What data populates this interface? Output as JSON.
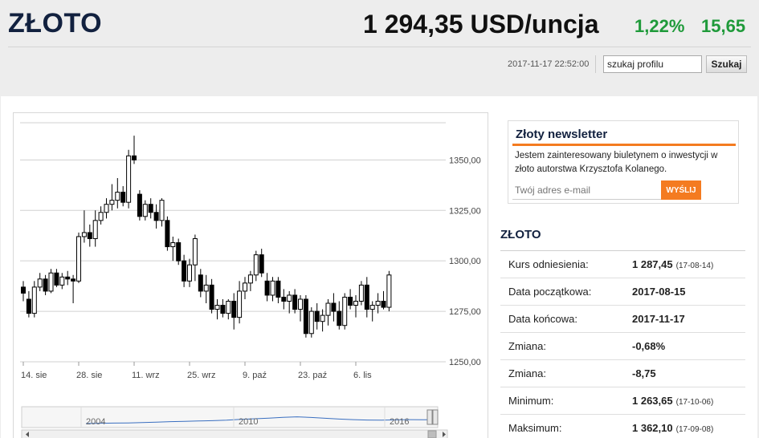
{
  "header": {
    "title": "ZŁOTO",
    "price": "1 294,35 USD/uncja",
    "change_pct": "1,22%",
    "change_abs": "15,65",
    "timestamp": "2017-11-17 22:52:00",
    "search_value": "szukaj profilu",
    "search_button": "Szukaj"
  },
  "newsletter": {
    "title": "Złoty newsletter",
    "text": "Jestem zainteresowany biuletynem o inwestycji w złoto autorstwa Krzysztofa Kolanego.",
    "placeholder": "Twój adres e-mail",
    "button": "WYŚLIJ",
    "accent": "#f47b20"
  },
  "stats": {
    "title": "ZŁOTO",
    "rows": [
      {
        "label": "Kurs odniesienia:",
        "value": "1 287,45",
        "date": "(17-08-14)"
      },
      {
        "label": "Data początkowa:",
        "value": "2017-08-15",
        "date": ""
      },
      {
        "label": "Data końcowa:",
        "value": "2017-11-17",
        "date": ""
      },
      {
        "label": "Zmiana:",
        "value": "-0,68%",
        "date": ""
      },
      {
        "label": "Zmiana:",
        "value": "-8,75",
        "date": ""
      },
      {
        "label": "Minimum:",
        "value": "1 263,65",
        "date": "(17-10-06)"
      },
      {
        "label": "Maksimum:",
        "value": "1 362,10",
        "date": "(17-09-08)"
      }
    ]
  },
  "chart_data": {
    "type": "candlestick",
    "ylim": [
      1250,
      1370
    ],
    "y_ticks": [
      1350,
      1325,
      1300,
      1275,
      1250
    ],
    "y_tick_labels": [
      "1350,00",
      "1325,00",
      "1300,00",
      "1275,00",
      "1250,00"
    ],
    "x_tick_labels": [
      "14. sie",
      "28. sie",
      "11. wrz",
      "25. wrz",
      "9. paź",
      "23. paź",
      "6. lis"
    ],
    "x_tick_index": [
      0,
      10,
      20,
      30,
      40,
      50,
      60
    ],
    "grid": true,
    "colors": {
      "up": "#ffffff",
      "down": "#000000",
      "grid": "#d0d0d0",
      "navigator": "#3a6fc0"
    },
    "candles": [
      [
        1287,
        1290,
        1280,
        1284
      ],
      [
        1281,
        1285,
        1272,
        1274
      ],
      [
        1274,
        1290,
        1272,
        1287
      ],
      [
        1287,
        1294,
        1285,
        1291
      ],
      [
        1291,
        1293,
        1283,
        1285
      ],
      [
        1285,
        1296,
        1284,
        1294
      ],
      [
        1294,
        1296,
        1287,
        1288
      ],
      [
        1288,
        1294,
        1286,
        1292
      ],
      [
        1292,
        1295,
        1288,
        1291
      ],
      [
        1291,
        1293,
        1279,
        1290
      ],
      [
        1290,
        1314,
        1289,
        1312
      ],
      [
        1312,
        1325,
        1309,
        1314
      ],
      [
        1314,
        1318,
        1307,
        1311
      ],
      [
        1311,
        1325,
        1307,
        1320
      ],
      [
        1320,
        1327,
        1318,
        1324
      ],
      [
        1324,
        1331,
        1321,
        1328
      ],
      [
        1328,
        1338,
        1325,
        1330
      ],
      [
        1330,
        1341,
        1326,
        1334
      ],
      [
        1334,
        1337,
        1327,
        1329
      ],
      [
        1329,
        1355,
        1326,
        1352
      ],
      [
        1352,
        1362,
        1348,
        1350
      ],
      [
        1333,
        1335,
        1320,
        1322
      ],
      [
        1322,
        1330,
        1320,
        1328
      ],
      [
        1328,
        1331,
        1321,
        1324
      ],
      [
        1324,
        1328,
        1316,
        1320
      ],
      [
        1320,
        1331,
        1317,
        1330
      ],
      [
        1320,
        1322,
        1305,
        1307
      ],
      [
        1307,
        1312,
        1300,
        1309
      ],
      [
        1309,
        1311,
        1298,
        1300
      ],
      [
        1300,
        1303,
        1287,
        1290
      ],
      [
        1290,
        1301,
        1287,
        1298
      ],
      [
        1298,
        1313,
        1290,
        1311
      ],
      [
        1293,
        1296,
        1282,
        1285
      ],
      [
        1285,
        1293,
        1279,
        1288
      ],
      [
        1288,
        1291,
        1274,
        1276
      ],
      [
        1276,
        1281,
        1271,
        1278
      ],
      [
        1278,
        1281,
        1272,
        1274
      ],
      [
        1274,
        1281,
        1271,
        1280
      ],
      [
        1280,
        1284,
        1266,
        1272
      ],
      [
        1272,
        1290,
        1269,
        1285
      ],
      [
        1285,
        1292,
        1281,
        1289
      ],
      [
        1289,
        1295,
        1285,
        1293
      ],
      [
        1293,
        1305,
        1290,
        1303
      ],
      [
        1303,
        1306,
        1292,
        1294
      ],
      [
        1290,
        1294,
        1280,
        1283
      ],
      [
        1283,
        1292,
        1280,
        1290
      ],
      [
        1290,
        1292,
        1279,
        1282
      ],
      [
        1282,
        1286,
        1276,
        1280
      ],
      [
        1280,
        1285,
        1274,
        1283
      ],
      [
        1283,
        1286,
        1274,
        1276
      ],
      [
        1276,
        1283,
        1270,
        1281
      ],
      [
        1281,
        1283,
        1262,
        1264
      ],
      [
        1264,
        1277,
        1262,
        1275
      ],
      [
        1275,
        1279,
        1266,
        1270
      ],
      [
        1270,
        1276,
        1265,
        1273
      ],
      [
        1273,
        1281,
        1268,
        1279
      ],
      [
        1279,
        1284,
        1270,
        1275
      ],
      [
        1275,
        1280,
        1266,
        1268
      ],
      [
        1268,
        1284,
        1266,
        1282
      ],
      [
        1282,
        1286,
        1276,
        1278
      ],
      [
        1278,
        1283,
        1272,
        1280
      ],
      [
        1280,
        1290,
        1278,
        1288
      ],
      [
        1288,
        1292,
        1272,
        1276
      ],
      [
        1276,
        1280,
        1270,
        1278
      ],
      [
        1278,
        1284,
        1274,
        1280
      ],
      [
        1280,
        1285,
        1276,
        1277
      ],
      [
        1277,
        1295,
        1275,
        1293
      ]
    ],
    "navigator": {
      "year_labels": [
        "2004",
        "2010",
        "2016"
      ],
      "line_values": [
        0.25,
        0.28,
        0.3,
        0.32,
        0.35,
        0.4,
        0.45,
        0.48,
        0.52,
        0.55,
        0.6,
        0.68,
        0.75,
        0.82,
        0.9,
        0.95,
        0.88,
        0.8,
        0.72,
        0.66,
        0.62,
        0.6,
        0.63,
        0.66,
        0.64,
        0.66
      ]
    }
  }
}
